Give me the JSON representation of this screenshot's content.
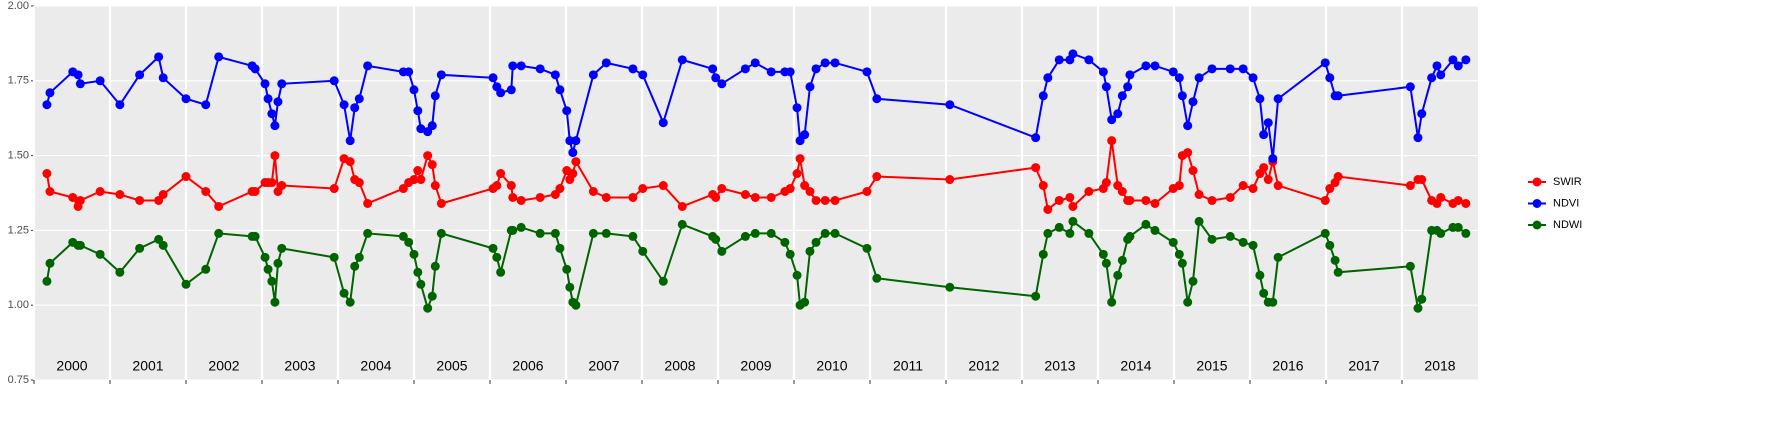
{
  "chart_data": {
    "type": "line",
    "x": [
      2000.17,
      2000.21,
      2000.51,
      2000.58,
      2000.61,
      2000.87,
      2001.13,
      2001.39,
      2001.64,
      2001.7,
      2002.0,
      2002.26,
      2002.43,
      2002.87,
      2002.91,
      2003.04,
      2003.08,
      2003.13,
      2003.17,
      2003.21,
      2003.26,
      2003.95,
      2004.08,
      2004.16,
      2004.22,
      2004.28,
      2004.39,
      2004.86,
      2004.93,
      2005.0,
      2005.05,
      2005.09,
      2005.18,
      2005.24,
      2005.28,
      2005.36,
      2006.04,
      2006.09,
      2006.14,
      2006.28,
      2006.3,
      2006.41,
      2006.66,
      2006.86,
      2006.92,
      2007.01,
      2007.05,
      2007.09,
      2007.13,
      2007.36,
      2007.53,
      2007.88,
      2008.01,
      2008.28,
      2008.53,
      2008.93,
      2008.97,
      2009.05,
      2009.36,
      2009.49,
      2009.7,
      2009.88,
      2009.95,
      2010.04,
      2010.08,
      2010.14,
      2010.21,
      2010.29,
      2010.41,
      2010.54,
      2010.96,
      2011.09,
      2012.05,
      2013.18,
      2013.28,
      2013.34,
      2013.49,
      2013.63,
      2013.67,
      2013.88,
      2014.07,
      2014.11,
      2014.18,
      2014.26,
      2014.32,
      2014.39,
      2014.42,
      2014.63,
      2014.75,
      2014.99,
      2015.07,
      2015.11,
      2015.18,
      2015.25,
      2015.33,
      2015.5,
      2015.74,
      2015.91,
      2016.04,
      2016.13,
      2016.18,
      2016.24,
      2016.3,
      2016.37,
      2016.99,
      2017.05,
      2017.12,
      2017.16,
      2018.11,
      2018.21,
      2018.26,
      2018.39,
      2018.46,
      2018.51,
      2018.67,
      2018.74,
      2018.84
    ],
    "series": [
      {
        "name": "SWIR",
        "color": "#ff0000",
        "values": [
          1.44,
          1.38,
          1.36,
          1.33,
          1.35,
          1.38,
          1.37,
          1.35,
          1.35,
          1.37,
          1.43,
          1.38,
          1.33,
          1.38,
          1.38,
          1.41,
          1.41,
          1.41,
          1.5,
          1.38,
          1.4,
          1.39,
          1.49,
          1.48,
          1.42,
          1.41,
          1.34,
          1.39,
          1.41,
          1.42,
          1.45,
          1.42,
          1.5,
          1.47,
          1.4,
          1.34,
          1.39,
          1.4,
          1.44,
          1.4,
          1.36,
          1.35,
          1.36,
          1.37,
          1.39,
          1.45,
          1.42,
          1.44,
          1.48,
          1.38,
          1.36,
          1.36,
          1.39,
          1.4,
          1.33,
          1.37,
          1.36,
          1.39,
          1.37,
          1.36,
          1.36,
          1.38,
          1.39,
          1.44,
          1.49,
          1.4,
          1.38,
          1.35,
          1.35,
          1.35,
          1.38,
          1.43,
          1.42,
          1.46,
          1.4,
          1.32,
          1.35,
          1.36,
          1.33,
          1.38,
          1.39,
          1.41,
          1.55,
          1.4,
          1.38,
          1.35,
          1.35,
          1.35,
          1.34,
          1.39,
          1.4,
          1.5,
          1.51,
          1.45,
          1.37,
          1.35,
          1.36,
          1.4,
          1.39,
          1.44,
          1.46,
          1.42,
          1.48,
          1.4,
          1.35,
          1.39,
          1.41,
          1.43,
          1.4,
          1.42,
          1.42,
          1.35,
          1.34,
          1.36,
          1.34,
          1.35,
          1.34
        ]
      },
      {
        "name": "NDVI",
        "color": "#0000ff",
        "values": [
          1.67,
          1.71,
          1.78,
          1.77,
          1.74,
          1.75,
          1.67,
          1.77,
          1.83,
          1.76,
          1.69,
          1.67,
          1.83,
          1.8,
          1.79,
          1.74,
          1.69,
          1.64,
          1.6,
          1.68,
          1.74,
          1.75,
          1.67,
          1.55,
          1.66,
          1.69,
          1.8,
          1.78,
          1.78,
          1.72,
          1.65,
          1.59,
          1.58,
          1.6,
          1.7,
          1.77,
          1.76,
          1.73,
          1.71,
          1.72,
          1.8,
          1.8,
          1.79,
          1.77,
          1.72,
          1.65,
          1.55,
          1.51,
          1.55,
          1.77,
          1.81,
          1.79,
          1.77,
          1.61,
          1.82,
          1.79,
          1.76,
          1.74,
          1.79,
          1.81,
          1.78,
          1.78,
          1.78,
          1.66,
          1.55,
          1.57,
          1.73,
          1.79,
          1.81,
          1.81,
          1.78,
          1.69,
          1.67,
          1.56,
          1.7,
          1.76,
          1.82,
          1.82,
          1.84,
          1.82,
          1.78,
          1.73,
          1.62,
          1.64,
          1.7,
          1.73,
          1.77,
          1.8,
          1.8,
          1.78,
          1.76,
          1.7,
          1.6,
          1.68,
          1.76,
          1.79,
          1.79,
          1.79,
          1.76,
          1.69,
          1.57,
          1.61,
          1.49,
          1.69,
          1.81,
          1.76,
          1.7,
          1.7,
          1.73,
          1.56,
          1.64,
          1.76,
          1.8,
          1.77,
          1.82,
          1.8,
          1.82
        ]
      },
      {
        "name": "NDWI",
        "color": "#006400",
        "values": [
          1.08,
          1.14,
          1.21,
          1.2,
          1.2,
          1.17,
          1.11,
          1.19,
          1.22,
          1.2,
          1.07,
          1.12,
          1.24,
          1.23,
          1.23,
          1.16,
          1.12,
          1.08,
          1.01,
          1.14,
          1.19,
          1.16,
          1.04,
          1.01,
          1.13,
          1.16,
          1.24,
          1.23,
          1.21,
          1.17,
          1.11,
          1.07,
          0.99,
          1.03,
          1.13,
          1.24,
          1.19,
          1.16,
          1.11,
          1.25,
          1.25,
          1.26,
          1.24,
          1.24,
          1.19,
          1.12,
          1.06,
          1.01,
          1.0,
          1.24,
          1.24,
          1.23,
          1.18,
          1.08,
          1.27,
          1.23,
          1.22,
          1.18,
          1.23,
          1.24,
          1.24,
          1.21,
          1.17,
          1.1,
          1.0,
          1.01,
          1.18,
          1.21,
          1.24,
          1.24,
          1.19,
          1.09,
          1.06,
          1.03,
          1.17,
          1.24,
          1.26,
          1.24,
          1.28,
          1.24,
          1.17,
          1.14,
          1.01,
          1.1,
          1.15,
          1.22,
          1.23,
          1.27,
          1.25,
          1.21,
          1.17,
          1.14,
          1.01,
          1.08,
          1.28,
          1.22,
          1.23,
          1.21,
          1.2,
          1.1,
          1.04,
          1.01,
          1.01,
          1.16,
          1.24,
          1.2,
          1.15,
          1.11,
          1.13,
          0.99,
          1.02,
          1.25,
          1.25,
          1.24,
          1.26,
          1.26,
          1.24
        ]
      }
    ],
    "xlim": [
      2000,
      2019
    ],
    "xticks": [
      2000,
      2001,
      2002,
      2003,
      2004,
      2005,
      2006,
      2007,
      2008,
      2009,
      2010,
      2011,
      2012,
      2013,
      2014,
      2015,
      2016,
      2017,
      2018
    ],
    "ylim": [
      0.75,
      2.0
    ],
    "yticks": [
      {
        "value": 0.75,
        "label": "0.75"
      },
      {
        "value": 1.0,
        "label": "1.00"
      },
      {
        "value": 1.25,
        "label": "1.25"
      },
      {
        "value": 1.5,
        "label": "1.50"
      },
      {
        "value": 1.75,
        "label": "1.75"
      },
      {
        "value": 2.0,
        "label": "2.00"
      }
    ],
    "grid": true,
    "legend": "right"
  }
}
